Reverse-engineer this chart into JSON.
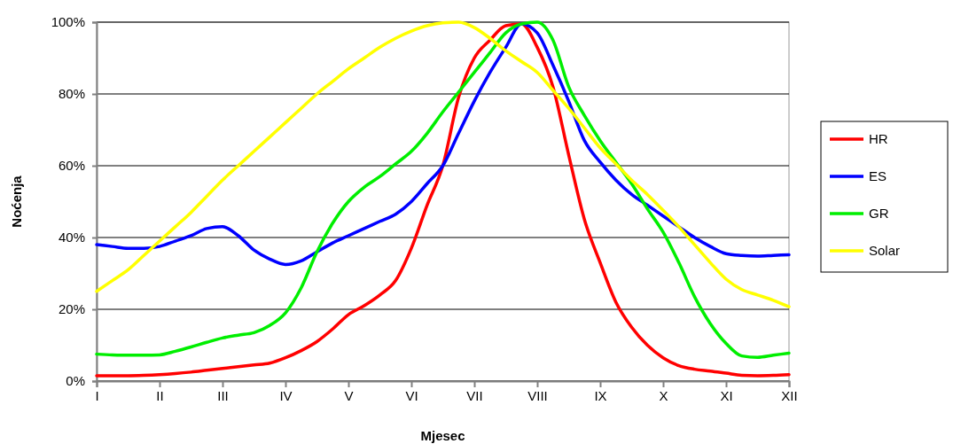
{
  "chart_data": {
    "type": "line",
    "xlabel": "Mjesec",
    "ylabel": "Noćenja",
    "categories": [
      "I",
      null,
      null,
      null,
      "II",
      null,
      null,
      null,
      "III",
      null,
      null,
      null,
      "IV",
      null,
      null,
      null,
      "V",
      null,
      null,
      null,
      "VI",
      null,
      null,
      null,
      "VII",
      null,
      null,
      null,
      "VIII",
      null,
      null,
      null,
      "IX",
      null,
      null,
      null,
      "X",
      null,
      null,
      null,
      "XI",
      null,
      null,
      null,
      "XII"
    ],
    "ylim": [
      0,
      100
    ],
    "yticks": [
      {
        "value": 0,
        "label": "0%"
      },
      {
        "value": 20,
        "label": "20%"
      },
      {
        "value": 40,
        "label": "40%"
      },
      {
        "value": 60,
        "label": "60%"
      },
      {
        "value": 80,
        "label": "80%"
      },
      {
        "value": 100,
        "label": "100%"
      }
    ],
    "grid": "y",
    "legend": "right",
    "marker": "none",
    "line_style": "solid",
    "series": [
      {
        "name": "HR",
        "color": "#ff0000",
        "values": [
          1.5,
          1.5,
          1.5,
          1.6,
          1.8,
          2.1,
          2.5,
          3,
          3.5,
          4,
          4.5,
          5,
          6.5,
          8.5,
          11,
          14.5,
          18.5,
          21,
          24,
          28,
          37,
          49,
          60,
          79,
          90,
          95,
          99,
          99.5,
          93,
          82,
          63,
          45,
          33,
          22,
          15,
          10,
          6.5,
          4.3,
          3.3,
          2.8,
          2.2,
          1.6,
          1.5,
          1.6,
          1.8
        ]
      },
      {
        "name": "ES",
        "color": "#0000ff",
        "values": [
          38,
          37.5,
          37,
          37,
          37.5,
          39,
          40.5,
          42.5,
          43,
          40.5,
          36.5,
          34,
          32.5,
          33.5,
          36,
          38.5,
          40.5,
          42.5,
          44.5,
          46.5,
          50,
          55,
          60,
          69,
          78,
          86,
          93,
          99.5,
          97,
          88,
          78,
          67,
          61,
          56,
          52,
          49,
          46,
          43,
          40,
          37.5,
          35.5,
          35,
          34.8,
          35,
          35.2
        ]
      },
      {
        "name": "GR",
        "color": "#00ee00",
        "values": [
          7.5,
          7.3,
          7.2,
          7.2,
          7.3,
          8.3,
          9.5,
          10.8,
          12,
          12.8,
          13.5,
          15.5,
          19,
          26,
          36,
          44,
          50,
          54,
          57,
          60.5,
          64,
          69,
          75,
          80.5,
          86,
          91.5,
          97,
          99.5,
          100,
          95,
          82,
          74,
          67,
          61,
          55,
          48,
          41.5,
          33,
          23.5,
          16,
          10.5,
          7,
          6.6,
          7.2,
          7.8
        ]
      },
      {
        "name": "Solar",
        "color": "#ffff00",
        "values": [
          25,
          28,
          31,
          35,
          39,
          43,
          47,
          51.5,
          56,
          60,
          64,
          68,
          72,
          76,
          80,
          83.5,
          87,
          90,
          93,
          95.5,
          97.5,
          99,
          99.8,
          100,
          98.5,
          95.5,
          92,
          89,
          86,
          81,
          76,
          70.5,
          65,
          60.5,
          56,
          52,
          47.6,
          43,
          38,
          33,
          28.4,
          25.5,
          24,
          22.5,
          20.7
        ]
      }
    ]
  }
}
